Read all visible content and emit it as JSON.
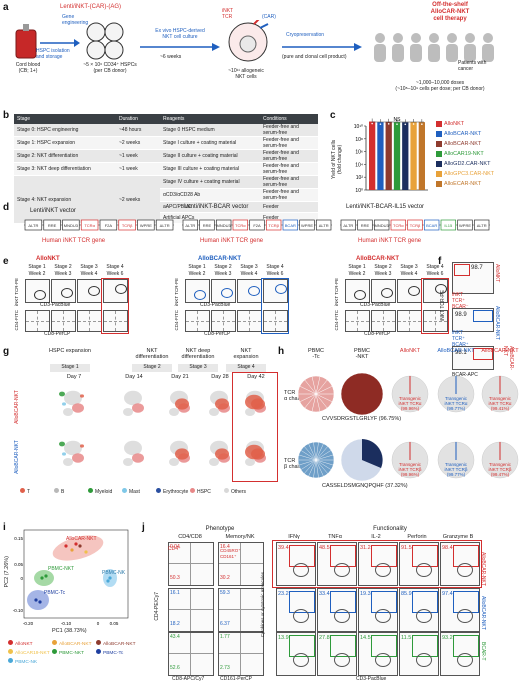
{
  "panel_letters": [
    "a",
    "b",
    "c",
    "d",
    "e",
    "f",
    "g",
    "h",
    "i",
    "j"
  ],
  "a": {
    "vector_label": "Lenti/iNKT-(CAR)-(AG)",
    "gene_engineering": "Gene\nengineering",
    "hspc_isolation": "HSPC isolation\nand storage",
    "culture_label": "Ex vivo HSPC-derived\nNKT cell culture",
    "weeks": "~6 weeks",
    "cryo": "Cryopreservation",
    "pure": "(pure and clonal cell product)",
    "offshelf": "Off-the-shelf\nAlloCAR-NKT\ncell therapy",
    "patients": "Patients with\ncancer",
    "cord_blood": "Cord blood\n(CB; 1+)",
    "cd34": "~5 × 10⁶ CD34⁺ HSPCs\n(per CB donor)",
    "yield": "~10¹¹ allogeneic\nNKT cells",
    "doses": "~1,000–10,000 doses\n(~10⁸–10⁹ cells per dose; per CB donor)",
    "inkt_tcr": "iNKT\nTCR",
    "car": "(CAR)",
    "ag": "AG"
  },
  "b": {
    "headers": [
      "Stage",
      "Duration",
      "Reagents",
      "Conditions"
    ],
    "rows": [
      [
        "Stage 0: HSPC engineering",
        "~48 hours",
        "Stage 0 HSPC medium",
        "Feeder-free and serum-free"
      ],
      [
        "Stage 1: HSPC expansion",
        "~2 weeks",
        "Stage I culture + coating material",
        "Feeder-free and serum-free"
      ],
      [
        "Stage 2: NKT differentiation",
        "~1 week",
        "Stage II culture + coating material",
        "Feeder-free and serum-free"
      ],
      [
        "Stage 3: NKT deep differentiation",
        "~1 week",
        "Stage III culture + coating material",
        "Feeder-free and serum-free"
      ],
      [
        "Stage 4: NKT expansion",
        "~2 weeks",
        "Stage IV culture + coating material",
        "Feeder-free and serum-free"
      ]
    ],
    "stage4_extra": [
      "αCD3/αCD28 Ab",
      "aAPC/PBMC",
      "Artificial APCs"
    ],
    "stage4_extra_cond": [
      "Feeder-free and serum-free",
      "Feeder",
      "Feeder"
    ]
  },
  "c": {
    "ns": "NS",
    "ylabel": "Yield of NKT cells\n(fold change)",
    "legend": [
      {
        "label": "AlloNKT",
        "color": "#d32f2f"
      },
      {
        "label": "AlloBCAR-NKT",
        "color": "#1f5fbf"
      },
      {
        "label": "AlloBCAR-NKT",
        "color": "#8e3b2e"
      },
      {
        "label": "AlloCAR19-NKT",
        "color": "#2e9a3a"
      },
      {
        "label": "AlloGD2.CAR-NKT",
        "color": "#1b2e5e"
      },
      {
        "label": "AlloGPC3.CAR-NKT",
        "color": "#e8a23a"
      },
      {
        "label": "AlloECAR-NKT",
        "color": "#c0762a"
      }
    ]
  },
  "chart_data": {
    "type": "bar",
    "title": "",
    "xlabel": "",
    "ylabel": "Yield of NKT cells (fold change)",
    "yscale": "log",
    "ylim": [
      1,
      10000000000
    ],
    "yticks": [
      "10¹⁰",
      "10⁸",
      "10⁶",
      "10⁴",
      "10²",
      "10⁰"
    ],
    "categories": [
      "AlloNKT",
      "AlloBCAR-NKT",
      "AlloBCAR-NKT",
      "AlloCAR19-NKT",
      "AlloGD2.CAR-NKT",
      "AlloGPC3.CAR-NKT",
      "AlloECAR-NKT"
    ],
    "values": [
      50000000000,
      40000000000,
      45000000000,
      40000000000,
      38000000000,
      42000000000,
      40000000000
    ],
    "colors": [
      "#d32f2f",
      "#1f5fbf",
      "#8e3b2e",
      "#2e9a3a",
      "#1b2e5e",
      "#e8a23a",
      "#c0762a"
    ]
  },
  "d": {
    "v1_title": "Lenti/iNKT vector",
    "v2_title": "Lenti/iNKT-BCAR vector",
    "v3_title": "Lenti/iNKT-BCAR-IL15 vector",
    "gene_label": "Human iNKT TCR gene",
    "elements": [
      "ΔLTR",
      "RRE",
      "MNDU3",
      "TCRα",
      "F2A",
      "TCRβ",
      "WPRE",
      "ΔLTR"
    ],
    "bcar": "BCAR",
    "il15": "IL15"
  },
  "e": {
    "groups": [
      "AlloNKT",
      "AlloBCAR-NKT",
      "AlloBCAR-NKT"
    ],
    "stages": [
      "Stage 1",
      "Stage 2",
      "Stage 3",
      "Stage 4"
    ],
    "weeks": [
      "Week 2",
      "Week 3",
      "Week 4",
      "Week 6"
    ],
    "xlabel1": "CD3-PacBlue",
    "xlabel2": "CD8-PerCP",
    "ylabel1": "iNKT TCR-PE",
    "ylabel2": "CD4-FITC"
  },
  "f": {
    "label1": "AlloNKT",
    "label2": "AlloBCAR-NKT",
    "label3": "AlloBCAR-NKT",
    "v1": "98.7",
    "v2": "98.9",
    "v3": "98.1",
    "txt1": "iNKT\nTCR⁺\nBCAR⁻",
    "txt2": "iNKT\nTCR⁺\nBCAR⁺",
    "ylabel": "iNKT TCR-PE",
    "xlabel": "BCAR-APC"
  },
  "g": {
    "col_titles": [
      "HSPC expansion",
      "NKT\ndifferentiation",
      "NKT deep\ndifferentiation",
      "NKT\nexpansion"
    ],
    "stages": [
      "Stage 1",
      "Stage 2",
      "Stage 3",
      "Stage 4"
    ],
    "days": [
      "Day 7",
      "Day 14",
      "Day 21",
      "Day 28",
      "Day 42"
    ],
    "row1": "AlloBCAR-NKT",
    "row2": "AlloBCAR-NKT",
    "legend": [
      {
        "label": "T",
        "color": "#e0604a"
      },
      {
        "label": "B",
        "color": "#b8b8b8"
      },
      {
        "label": "Myeloid",
        "color": "#2e9a3a"
      },
      {
        "label": "Mast",
        "color": "#7fc8e8"
      },
      {
        "label": "Erythrocyte",
        "color": "#2a4fa0"
      },
      {
        "label": "HSPC",
        "color": "#e88888"
      },
      {
        "label": "Others",
        "color": "#d8d8d8"
      }
    ]
  },
  "h": {
    "cols": [
      "PBMC\n-Tc",
      "PBMC\n-NKT",
      "AlloNKT",
      "AlloBCAR-NKT",
      "AlloBCAR-NKT"
    ],
    "row1": "TCR\nα chain",
    "row2": "TCR\nβ chain",
    "seq1": "CVVSDRGSTLGRLYF (96.75%)",
    "seq2": "CASSELDSMGNQPQHF (37.32%)",
    "trans_alpha": [
      "Transgenic\niNKT TCRα\n(99.96%)",
      "Transgenic\niNKT TCRα\n(99.77%)",
      "Transgenic\niNKT TCRα\n(99.41%)"
    ],
    "trans_beta": [
      "Transgenic\niNKT TCRβ\n(99.96%)",
      "Transgenic\niNKT TCRβ\n(99.77%)",
      "Transgenic\niNKT TCRβ\n(99.47%)"
    ]
  },
  "i": {
    "xlabel": "PC1 (38.73%)",
    "ylabel": "PC2 (7.26%)",
    "xticks": [
      "-0.20",
      "-0.10",
      "0",
      "0.05"
    ],
    "yticks": [
      "0.15",
      "0.05",
      "0",
      "-0.10"
    ],
    "labels": [
      "AlloCAR-NKT",
      "PBMC-NKT",
      "PBMC-NK",
      "PBMC-Tc"
    ],
    "legend": [
      {
        "label": "AlloNKT",
        "color": "#d32f2f"
      },
      {
        "label": "AlloBCAR-NKT",
        "color": "#e8a23a"
      },
      {
        "label": "AlloBCAR-NKT",
        "color": "#8e3b2e"
      },
      {
        "label": "AlloCAR19-NKT",
        "color": "#f0c14a"
      },
      {
        "label": "PBMC-NKT",
        "color": "#2e9a3a"
      },
      {
        "label": "PBMC-Tc",
        "color": "#1f3fa0"
      },
      {
        "label": "PBMC-NK",
        "color": "#4aa8d8"
      }
    ]
  },
  "j": {
    "phenotype": "Phenotype",
    "functionality": "Functionality",
    "pheno_cols": [
      "CD4/CD8",
      "Memory/NK"
    ],
    "func_cols": [
      "IFNγ",
      "TNFα",
      "IL-2",
      "Perforin",
      "Granzyme B"
    ],
    "rows": [
      "AlloBCAR-NKT",
      "AlloBCAR-NKT",
      "BCAR-T"
    ],
    "xlabel1": "CD8-APC/Cy7",
    "xlabel2": "CD161-PerCP",
    "xlabel3": "CD3-PacBlue",
    "ylabel1": "CD4-PE/Cy7",
    "ylabel2": "CD45RO-APC/Cy7",
    "ylabel3": "Cytokines or cytotoxic molecules",
    "r1": [
      "39.4",
      "48.5",
      "31.2",
      "91.5",
      "98.4"
    ],
    "r2": [
      "23.2",
      "33.4",
      "19.3",
      "85.9",
      "97.4"
    ],
    "r3": [
      "13.9",
      "27.8",
      "14.5",
      "11.5",
      "93.2"
    ],
    "pheno_r1": [
      "0.04",
      "16.4",
      "50.3",
      "30.2"
    ],
    "pheno_r2": [
      "16.1",
      "59.3",
      "18.2",
      "6.37"
    ],
    "pheno_r3": [
      "43.4",
      "1.77",
      "52.6",
      "2.73"
    ],
    "cd4lab": "CD4⁺",
    "cd45ro": "CD45RO⁺\nCD161⁺"
  }
}
